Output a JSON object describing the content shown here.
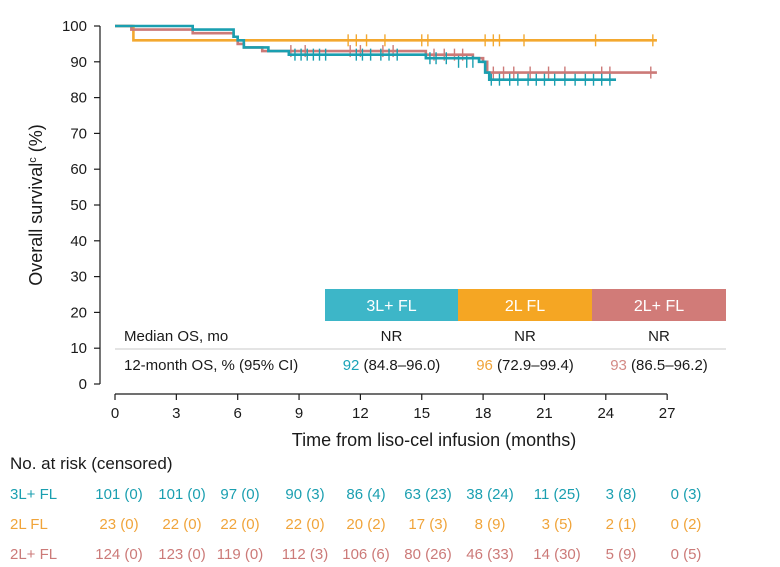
{
  "chart_data": {
    "type": "line",
    "subtype": "kaplan-meier",
    "ylabel_main": "Overall survival",
    "ylabel_sup": "c",
    "ylabel_unit": " (%)",
    "xlabel": "Time from liso-cel infusion (months)",
    "x_ticks": [
      0,
      3,
      6,
      9,
      12,
      15,
      18,
      21,
      24,
      27
    ],
    "y_ticks": [
      0,
      10,
      20,
      30,
      40,
      50,
      60,
      70,
      80,
      90,
      100
    ],
    "xlim": [
      0,
      27
    ],
    "ylim": [
      0,
      100
    ],
    "grid": false,
    "series": [
      {
        "name": "3L+ FL",
        "color": "#1a9fb0",
        "steps": [
          [
            0,
            100
          ],
          [
            0.5,
            100
          ],
          [
            3.8,
            99
          ],
          [
            5.8,
            97
          ],
          [
            6,
            96
          ],
          [
            6.3,
            94
          ],
          [
            7.5,
            93
          ],
          [
            8.5,
            92
          ],
          [
            14.3,
            92
          ],
          [
            15.2,
            91
          ],
          [
            16.5,
            91
          ],
          [
            17.8,
            90
          ],
          [
            18.1,
            87
          ],
          [
            18.3,
            85
          ],
          [
            24.5,
            85
          ]
        ],
        "censors": [
          [
            8.8,
            92
          ],
          [
            9.1,
            92
          ],
          [
            9.4,
            92
          ],
          [
            9.7,
            92
          ],
          [
            10,
            92
          ],
          [
            10.3,
            92
          ],
          [
            11.8,
            92
          ],
          [
            12.1,
            92
          ],
          [
            12.5,
            92
          ],
          [
            13,
            92
          ],
          [
            13.4,
            92
          ],
          [
            13.8,
            92
          ],
          [
            15.4,
            91
          ],
          [
            15.7,
            91
          ],
          [
            16.2,
            91
          ],
          [
            16.8,
            90
          ],
          [
            17.2,
            90
          ],
          [
            17.5,
            90
          ],
          [
            18.4,
            85
          ],
          [
            18.8,
            85
          ],
          [
            19.3,
            85
          ],
          [
            19.7,
            85
          ],
          [
            20.2,
            85
          ],
          [
            20.6,
            85
          ],
          [
            21,
            85
          ],
          [
            21.5,
            85
          ],
          [
            22,
            85
          ],
          [
            22.5,
            85
          ],
          [
            23,
            85
          ],
          [
            23.4,
            85
          ],
          [
            23.8,
            85
          ],
          [
            24.2,
            85
          ]
        ]
      },
      {
        "name": "2L FL",
        "color": "#f3a82f",
        "steps": [
          [
            0,
            100
          ],
          [
            0.9,
            96
          ],
          [
            26.5,
            96
          ]
        ],
        "censors": [
          [
            11.4,
            96
          ],
          [
            11.8,
            96
          ],
          [
            12.3,
            96
          ],
          [
            13.2,
            96
          ],
          [
            15,
            96
          ],
          [
            15.3,
            96
          ],
          [
            18.1,
            96
          ],
          [
            18.5,
            96
          ],
          [
            18.8,
            96
          ],
          [
            20,
            96
          ],
          [
            23.5,
            96
          ],
          [
            26.3,
            96
          ]
        ]
      },
      {
        "name": "2L+ FL",
        "color": "#cc7a78",
        "steps": [
          [
            0,
            100
          ],
          [
            0.8,
            99
          ],
          [
            3.8,
            98
          ],
          [
            5.8,
            97
          ],
          [
            6,
            95
          ],
          [
            6.3,
            94
          ],
          [
            7.2,
            93
          ],
          [
            8.2,
            93
          ],
          [
            14.2,
            93
          ],
          [
            15.2,
            92
          ],
          [
            17.2,
            92
          ],
          [
            17.5,
            91
          ],
          [
            18,
            90
          ],
          [
            18.2,
            87
          ],
          [
            26.5,
            87
          ]
        ],
        "censors": [
          [
            8.6,
            93
          ],
          [
            9.3,
            93
          ],
          [
            11.5,
            93
          ],
          [
            12,
            93
          ],
          [
            13.1,
            93
          ],
          [
            13.6,
            93
          ],
          [
            15.6,
            92
          ],
          [
            16.1,
            92
          ],
          [
            16.6,
            92
          ],
          [
            17,
            92
          ],
          [
            18.5,
            87
          ],
          [
            19,
            87
          ],
          [
            19.5,
            87
          ],
          [
            20.3,
            87
          ],
          [
            21.2,
            87
          ],
          [
            22,
            87
          ],
          [
            23.8,
            87
          ],
          [
            24.2,
            87
          ],
          [
            26.2,
            87
          ]
        ]
      }
    ],
    "summary_table": {
      "headers": [
        "3L+ FL",
        "2L FL",
        "2L+ FL"
      ],
      "header_colors": [
        "#3db6c8",
        "#f5a623",
        "#d17b78"
      ],
      "text_colors": [
        "#1aa3b8",
        "#f0a43a",
        "#d48a85"
      ],
      "row1_label": "Median OS, mo",
      "row1_values": [
        "NR",
        "NR",
        "NR"
      ],
      "row2_label": "12-month OS, % (95% CI)",
      "row2_values": [
        {
          "value": "92",
          "ci": "(84.8–96.0)"
        },
        {
          "value": "96",
          "ci": "(72.9–99.4)"
        },
        {
          "value": "93",
          "ci": "(86.5–96.2)"
        }
      ]
    }
  },
  "risk_table": {
    "title": "No. at risk (censored)",
    "rows": [
      {
        "label": "3L+ FL",
        "color": "#1a9fb0",
        "values": [
          "101 (0)",
          "101 (0)",
          "97 (0)",
          "90 (3)",
          "86 (4)",
          "63 (23)",
          "38 (24)",
          "11 (25)",
          "3 (8)",
          "0 (3)"
        ]
      },
      {
        "label": "2L FL",
        "color": "#f0a43a",
        "values": [
          "23 (0)",
          "22 (0)",
          "22 (0)",
          "22 (0)",
          "20 (2)",
          "17 (3)",
          "8 (9)",
          "3 (5)",
          "2 (1)",
          "0 (2)"
        ]
      },
      {
        "label": "2L+ FL",
        "color": "#cc7a78",
        "values": [
          "124 (0)",
          "123 (0)",
          "119 (0)",
          "112 (3)",
          "106 (6)",
          "80 (26)",
          "46 (33)",
          "14 (30)",
          "5 (9)",
          "0 (5)"
        ]
      }
    ]
  }
}
